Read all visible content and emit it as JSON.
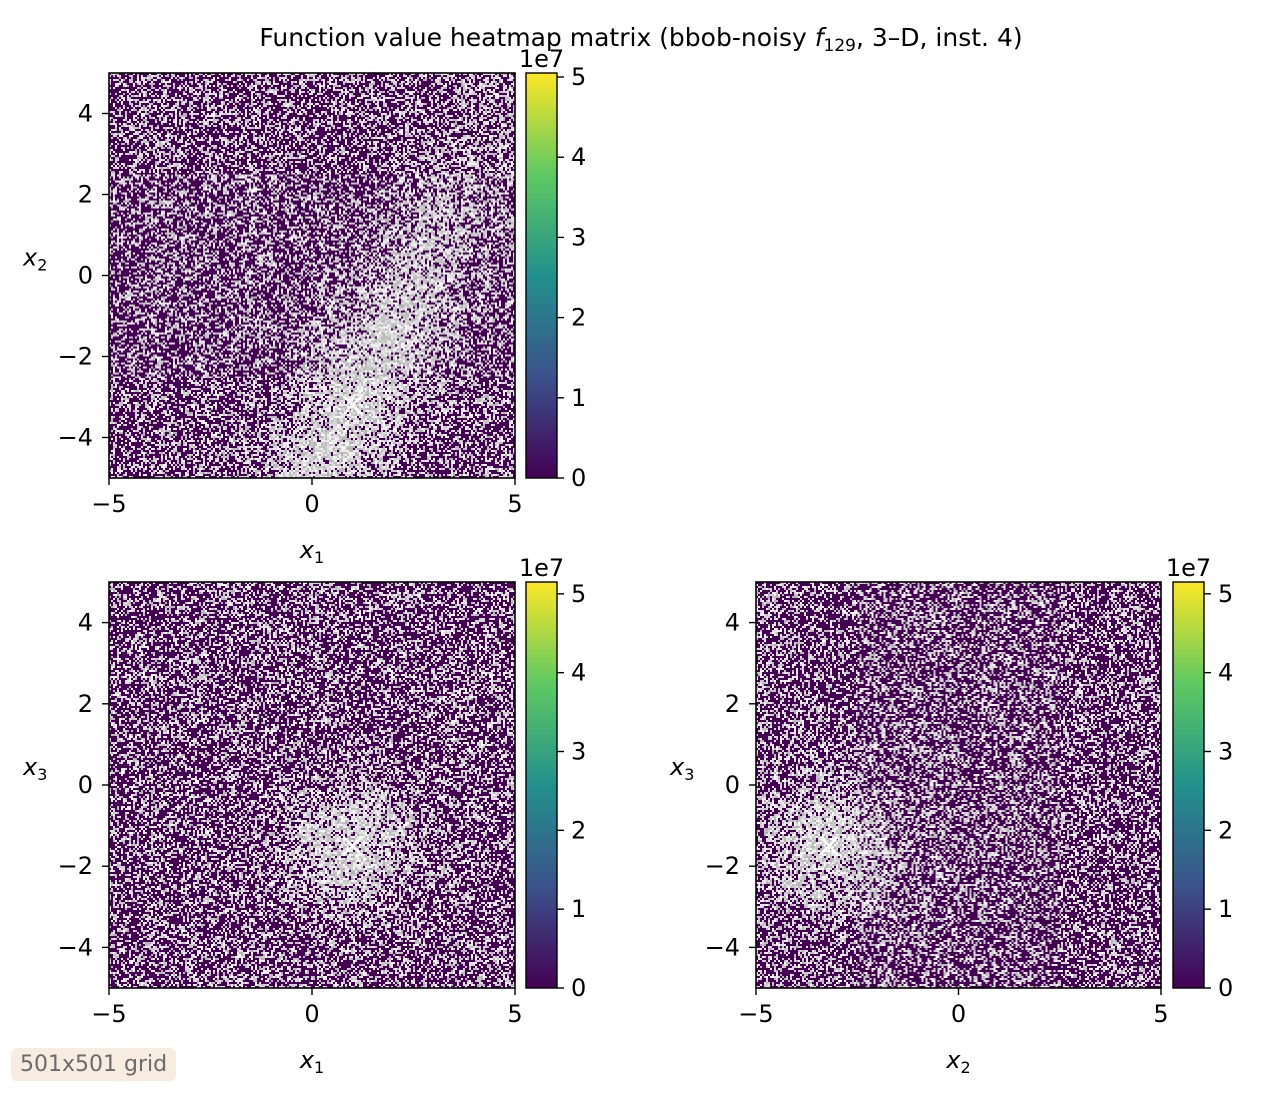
{
  "figure": {
    "title_prefix": "Function value heatmap matrix (bbob-noisy ",
    "title_func": "f",
    "title_func_sub": "129",
    "title_suffix": ", 3–D, inst. 4)",
    "badge": "501x501 grid"
  },
  "colors": {
    "viridis_stops": [
      "#440154",
      "#3b528b",
      "#21918c",
      "#5ec962",
      "#fde725"
    ],
    "noise_light": "#d8d8d8",
    "marker": "#ffffff"
  },
  "chart_data": [
    {
      "type": "heatmap",
      "name": "x1-x2",
      "xlabel": "x",
      "xlabel_sub": "1",
      "ylabel": "x",
      "ylabel_sub": "2",
      "xlim": [
        -5,
        5
      ],
      "ylim": [
        -5,
        5
      ],
      "xticks": [
        -5,
        0,
        5
      ],
      "yticks": [
        -4,
        -2,
        0,
        2,
        4
      ],
      "grid_resolution": [
        501,
        501
      ],
      "optimum_marker": [
        1.0,
        -3.2
      ],
      "colorbar": {
        "scale_label": "1e7",
        "ticks": [
          0,
          1,
          2,
          3,
          4,
          5
        ],
        "range": [
          0,
          5.05
        ]
      }
    },
    {
      "type": "heatmap",
      "name": "x1-x3",
      "xlabel": "x",
      "xlabel_sub": "1",
      "ylabel": "x",
      "ylabel_sub": "3",
      "xlim": [
        -5,
        5
      ],
      "ylim": [
        -5,
        5
      ],
      "xticks": [
        -5,
        0,
        5
      ],
      "yticks": [
        -4,
        -2,
        0,
        2,
        4
      ],
      "grid_resolution": [
        501,
        501
      ],
      "optimum_marker": [
        1.0,
        -1.5
      ],
      "colorbar": {
        "scale_label": "1e7",
        "ticks": [
          0,
          1,
          2,
          3,
          4,
          5
        ],
        "range": [
          0,
          5.15
        ]
      }
    },
    {
      "type": "heatmap",
      "name": "x2-x3",
      "xlabel": "x",
      "xlabel_sub": "2",
      "ylabel": "x",
      "ylabel_sub": "3",
      "xlim": [
        -5,
        5
      ],
      "ylim": [
        -5,
        5
      ],
      "xticks": [
        -5,
        0,
        5
      ],
      "yticks": [
        -4,
        -2,
        0,
        2,
        4
      ],
      "grid_resolution": [
        501,
        501
      ],
      "optimum_marker": [
        -3.2,
        -1.5
      ],
      "colorbar": {
        "scale_label": "1e7",
        "ticks": [
          0,
          1,
          2,
          3,
          4,
          5
        ],
        "range": [
          0,
          5.15
        ]
      }
    }
  ]
}
